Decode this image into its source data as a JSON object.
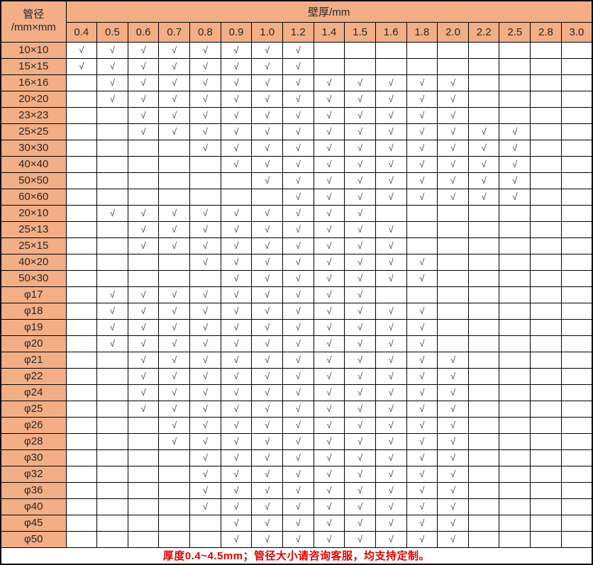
{
  "colors": {
    "header_fill": "#F3AE86",
    "check": "#333f4f",
    "footer_text": "#e80000"
  },
  "table": {
    "corner_header_line1": "管径",
    "corner_header_line2": "/mm×mm",
    "thickness_header": "壁厚/mm",
    "check_symbol": "√",
    "thickness_columns": [
      "0.4",
      "0.5",
      "0.6",
      "0.7",
      "0.8",
      "0.9",
      "1.0",
      "1.2",
      "1.4",
      "1.5",
      "1.6",
      "1.8",
      "2.0",
      "2.2",
      "2.5",
      "2.8",
      "3.0"
    ],
    "rows": [
      {
        "label": "10×10",
        "checked": [
          "0.4",
          "0.5",
          "0.6",
          "0.7",
          "0.8",
          "0.9",
          "1.0",
          "1.2"
        ]
      },
      {
        "label": "15×15",
        "checked": [
          "0.4",
          "0.5",
          "0.6",
          "0.7",
          "0.8",
          "0.9",
          "1.0",
          "1.2"
        ]
      },
      {
        "label": "16×16",
        "checked": [
          "0.5",
          "0.6",
          "0.7",
          "0.8",
          "0.9",
          "1.0",
          "1.2",
          "1.4",
          "1.5",
          "1.6",
          "1.8",
          "2.0"
        ]
      },
      {
        "label": "20×20",
        "checked": [
          "0.5",
          "0.6",
          "0.7",
          "0.8",
          "0.9",
          "1.0",
          "1.2",
          "1.4",
          "1.5",
          "1.6",
          "1.8",
          "2.0"
        ]
      },
      {
        "label": "23×23",
        "checked": [
          "0.6",
          "0.7",
          "0.8",
          "0.9",
          "1.0",
          "1.2",
          "1.4",
          "1.5",
          "1.6",
          "1.8",
          "2.0"
        ]
      },
      {
        "label": "25×25",
        "checked": [
          "0.6",
          "0.7",
          "0.8",
          "0.9",
          "1.0",
          "1.2",
          "1.4",
          "1.5",
          "1.6",
          "1.8",
          "2.0",
          "2.2",
          "2.5"
        ]
      },
      {
        "label": "30×30",
        "checked": [
          "0.8",
          "0.9",
          "1.0",
          "1.2",
          "1.4",
          "1.5",
          "1.6",
          "1.8",
          "2.0",
          "2.2",
          "2.5"
        ]
      },
      {
        "label": "40×40",
        "checked": [
          "0.9",
          "1.0",
          "1.2",
          "1.4",
          "1.5",
          "1.6",
          "1.8",
          "2.0",
          "2.2",
          "2.5"
        ]
      },
      {
        "label": "50×50",
        "checked": [
          "1.0",
          "1.2",
          "1.4",
          "1.5",
          "1.6",
          "1.8",
          "2.0",
          "2.2",
          "2.5"
        ]
      },
      {
        "label": "60×60",
        "checked": [
          "1.2",
          "1.4",
          "1.5",
          "1.6",
          "1.8",
          "2.0",
          "2.2",
          "2.5"
        ]
      },
      {
        "label": "20×10",
        "checked": [
          "0.5",
          "0.6",
          "0.7",
          "0.8",
          "0.9",
          "1.0",
          "1.2",
          "1.4",
          "1.5"
        ]
      },
      {
        "label": "25×13",
        "checked": [
          "0.6",
          "0.7",
          "0.8",
          "0.9",
          "1.0",
          "1.2",
          "1.4",
          "1.5",
          "1.6"
        ]
      },
      {
        "label": "25×15",
        "checked": [
          "0.6",
          "0.7",
          "0.8",
          "0.9",
          "1.0",
          "1.2",
          "1.4",
          "1.5",
          "1.6"
        ]
      },
      {
        "label": "40×20",
        "checked": [
          "0.8",
          "0.9",
          "1.0",
          "1.2",
          "1.4",
          "1.5",
          "1.6",
          "1.8"
        ]
      },
      {
        "label": "50×30",
        "checked": [
          "0.9",
          "1.0",
          "1.2",
          "1.4",
          "1.5",
          "1.6",
          "1.8"
        ]
      },
      {
        "label": "φ17",
        "checked": [
          "0.5",
          "0.6",
          "0.7",
          "0.8",
          "0.9",
          "1.0",
          "1.2",
          "1.4",
          "1.5"
        ]
      },
      {
        "label": "φ18",
        "checked": [
          "0.5",
          "0.6",
          "0.7",
          "0.8",
          "0.9",
          "1.0",
          "1.2",
          "1.4",
          "1.5",
          "1.6",
          "1.8"
        ]
      },
      {
        "label": "φ19",
        "checked": [
          "0.5",
          "0.6",
          "0.7",
          "0.8",
          "0.9",
          "1.0",
          "1.2",
          "1.4",
          "1.5",
          "1.6",
          "1.8"
        ]
      },
      {
        "label": "φ20",
        "checked": [
          "0.5",
          "0.6",
          "0.7",
          "0.8",
          "0.9",
          "1.0",
          "1.2",
          "1.4",
          "1.5",
          "1.6",
          "1.8"
        ]
      },
      {
        "label": "φ21",
        "checked": [
          "0.6",
          "0.7",
          "0.8",
          "0.9",
          "1.0",
          "1.2",
          "1.4",
          "1.5",
          "1.6",
          "1.8",
          "2.0"
        ]
      },
      {
        "label": "φ22",
        "checked": [
          "0.6",
          "0.7",
          "0.8",
          "0.9",
          "1.0",
          "1.2",
          "1.4",
          "1.5",
          "1.6",
          "1.8",
          "2.0"
        ]
      },
      {
        "label": "φ24",
        "checked": [
          "0.6",
          "0.7",
          "0.8",
          "0.9",
          "1.0",
          "1.2",
          "1.4",
          "1.5",
          "1.6",
          "1.8",
          "2.0"
        ]
      },
      {
        "label": "φ25",
        "checked": [
          "0.6",
          "0.7",
          "0.8",
          "0.9",
          "1.0",
          "1.2",
          "1.4",
          "1.5",
          "1.6",
          "1.8",
          "2.0"
        ]
      },
      {
        "label": "φ26",
        "checked": [
          "0.7",
          "0.8",
          "0.9",
          "1.0",
          "1.2",
          "1.4",
          "1.5",
          "1.6",
          "1.8",
          "2.0"
        ]
      },
      {
        "label": "φ28",
        "checked": [
          "0.7",
          "0.8",
          "0.9",
          "1.0",
          "1.2",
          "1.4",
          "1.5",
          "1.6",
          "1.8",
          "2.0"
        ]
      },
      {
        "label": "φ30",
        "checked": [
          "0.8",
          "0.9",
          "1.0",
          "1.2",
          "1.4",
          "1.5",
          "1.6",
          "1.8",
          "2.0"
        ]
      },
      {
        "label": "φ32",
        "checked": [
          "0.8",
          "0.9",
          "1.0",
          "1.2",
          "1.4",
          "1.5",
          "1.6",
          "1.8",
          "2.0"
        ]
      },
      {
        "label": "φ36",
        "checked": [
          "0.8",
          "0.9",
          "1.0",
          "1.2",
          "1.4",
          "1.5",
          "1.6",
          "1.8",
          "2.0"
        ]
      },
      {
        "label": "φ40",
        "checked": [
          "0.8",
          "0.9",
          "1.0",
          "1.2",
          "1.4",
          "1.5",
          "1.6",
          "1.8",
          "2.0"
        ]
      },
      {
        "label": "φ45",
        "checked": [
          "0.9",
          "1.0",
          "1.2",
          "1.4",
          "1.5",
          "1.6",
          "1.8",
          "2.0"
        ]
      },
      {
        "label": "φ50",
        "checked": [
          "0.9",
          "1.0",
          "1.2",
          "1.4",
          "1.5",
          "1.6",
          "1.8",
          "2.0"
        ]
      }
    ],
    "footer_note": "厚度0.4~4.5mm；管径大小请咨询客服，均支持定制。"
  }
}
